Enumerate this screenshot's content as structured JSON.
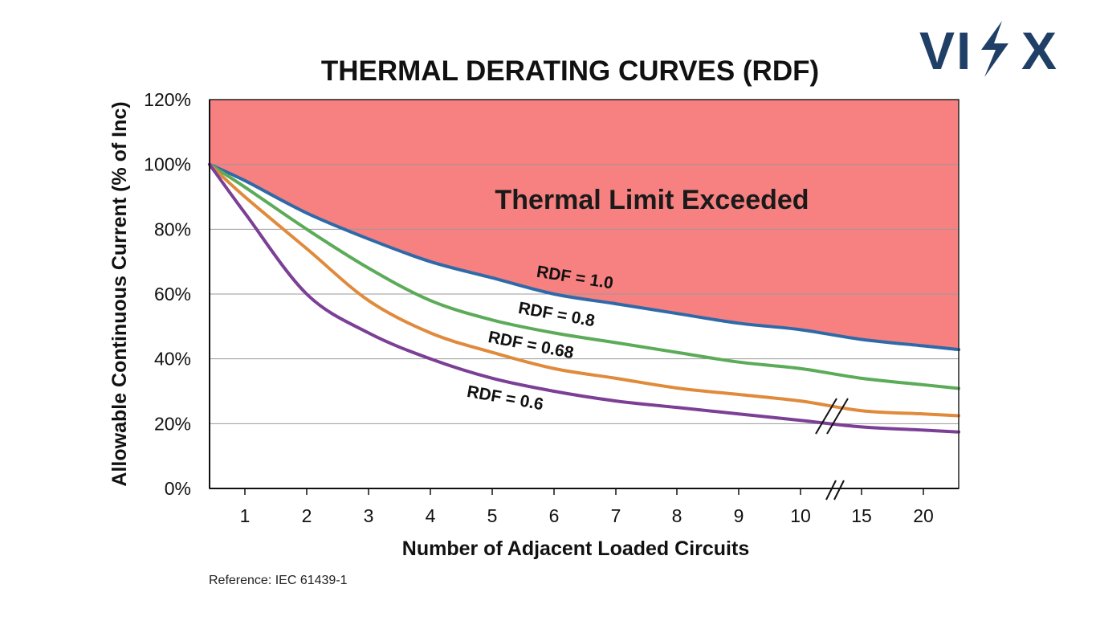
{
  "logo": {
    "text_left": "VI",
    "text_right": "X",
    "color": "#1f3f66",
    "bolt_color": "#1f3f66"
  },
  "chart_data": {
    "type": "line",
    "title": "THERMAL DERATING CURVES (RDF)",
    "xlabel": "Number of Adjacent Loaded Circuits",
    "ylabel": "Allowable Continuous Current (% of Inc)",
    "x_ticks": [
      "1",
      "2",
      "3",
      "4",
      "5",
      "6",
      "7",
      "8",
      "9",
      "10",
      "15",
      "20"
    ],
    "x_axis_break": "between 10 and 15",
    "y_ticks": [
      "0%",
      "20%",
      "40%",
      "60%",
      "80%",
      "100%",
      "120%"
    ],
    "ylim": [
      0,
      120
    ],
    "grid": "horizontal",
    "annotation": "Thermal Limit Exceeded",
    "shaded_region": {
      "description_color": "#f78080",
      "boundary_series": "RDF = 1.0"
    },
    "series": [
      {
        "name": "RDF = 1.0",
        "color": "#2f6aa8",
        "points": [
          [
            0.5,
            100
          ],
          [
            1,
            95
          ],
          [
            2,
            85
          ],
          [
            3,
            77
          ],
          [
            4,
            70
          ],
          [
            5,
            65
          ],
          [
            6,
            60
          ],
          [
            7,
            57
          ],
          [
            8,
            54
          ],
          [
            9,
            51
          ],
          [
            10,
            49
          ],
          [
            15,
            46
          ],
          [
            20,
            44
          ]
        ]
      },
      {
        "name": "RDF = 0.8",
        "color": "#5cab58",
        "points": [
          [
            0.5,
            100
          ],
          [
            1,
            93
          ],
          [
            2,
            80
          ],
          [
            3,
            68
          ],
          [
            4,
            58
          ],
          [
            5,
            52
          ],
          [
            6,
            48
          ],
          [
            7,
            45
          ],
          [
            8,
            42
          ],
          [
            9,
            39
          ],
          [
            10,
            37
          ],
          [
            15,
            34
          ],
          [
            20,
            32
          ]
        ]
      },
      {
        "name": "RDF = 0.68",
        "color": "#e08a3c",
        "points": [
          [
            0.5,
            100
          ],
          [
            1,
            90
          ],
          [
            2,
            74
          ],
          [
            3,
            58
          ],
          [
            4,
            48
          ],
          [
            5,
            42
          ],
          [
            6,
            37
          ],
          [
            7,
            34
          ],
          [
            8,
            31
          ],
          [
            9,
            29
          ],
          [
            10,
            27
          ],
          [
            15,
            24
          ],
          [
            20,
            23
          ]
        ]
      },
      {
        "name": "RDF = 0.6",
        "color": "#7b3f96",
        "points": [
          [
            0.5,
            100
          ],
          [
            1,
            85
          ],
          [
            2,
            60
          ],
          [
            3,
            48
          ],
          [
            4,
            40
          ],
          [
            5,
            34
          ],
          [
            6,
            30
          ],
          [
            7,
            27
          ],
          [
            8,
            25
          ],
          [
            9,
            23
          ],
          [
            10,
            21
          ],
          [
            15,
            19
          ],
          [
            20,
            18
          ]
        ]
      }
    ]
  },
  "reference": "Reference: IEC 61439-1"
}
